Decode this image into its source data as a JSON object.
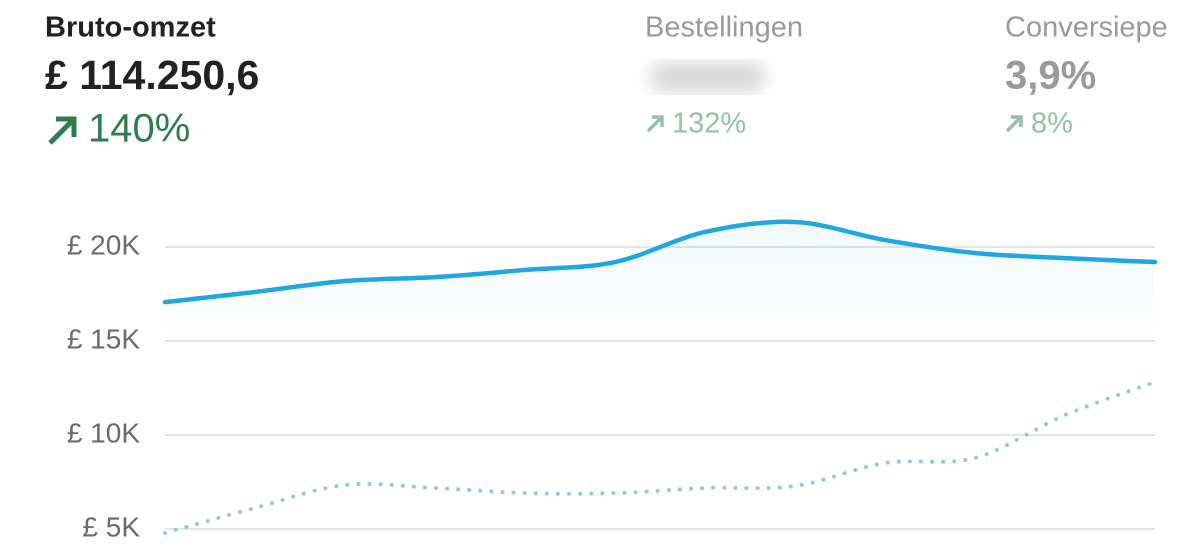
{
  "metrics": [
    {
      "label": "Bruto-omzet",
      "value": "£ 114.250,6",
      "change": "140%"
    },
    {
      "label": "Bestellingen",
      "change": "132%"
    },
    {
      "label": "Conversiepe",
      "value": "3,9%",
      "change": "8%"
    }
  ],
  "chart_data": {
    "type": "line",
    "categories": [
      null,
      null,
      null,
      null,
      null,
      null,
      null,
      null,
      null,
      null,
      null,
      null
    ],
    "series": [
      {
        "color": "#1fa7e3",
        "style": "solid",
        "values": [
          17070,
          17610,
          18190,
          18400,
          18780,
          19200,
          20800,
          21330,
          20370,
          19680,
          19410,
          19200
        ]
      },
      {
        "color": "#8ccbe0",
        "style": "dotted",
        "values": [
          4790,
          6120,
          7340,
          7180,
          6910,
          6910,
          7180,
          7290,
          8510,
          8780,
          11060,
          12820
        ]
      }
    ],
    "ylim": [
      3500,
      23000
    ],
    "yticks": [
      {
        "value": 5000,
        "label": "£ 5K"
      },
      {
        "value": 10000,
        "label": "£ 10K"
      },
      {
        "value": 15000,
        "label": "£ 15K"
      },
      {
        "value": 20000,
        "label": "£ 20K"
      }
    ],
    "grid": true
  }
}
